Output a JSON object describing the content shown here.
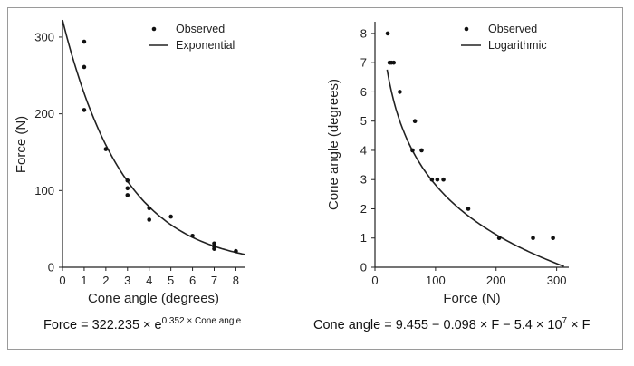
{
  "chart_data": [
    {
      "type": "scatter",
      "xlabel": "Cone angle (degrees)",
      "ylabel": "Force (N)",
      "xlim": [
        0,
        8.4
      ],
      "ylim": [
        0,
        320
      ],
      "xticks": [
        0,
        1,
        2,
        3,
        4,
        5,
        6,
        7,
        8
      ],
      "yticks": [
        0,
        100,
        200,
        300
      ],
      "legend": {
        "position": "top-right",
        "observed": "Observed",
        "fit": "Exponential"
      },
      "series": [
        {
          "name": "Observed",
          "points": [
            [
              1,
              294
            ],
            [
              1,
              261
            ],
            [
              1,
              205
            ],
            [
              2,
              154
            ],
            [
              3,
              113
            ],
            [
              3,
              103
            ],
            [
              3,
              94
            ],
            [
              4,
              77
            ],
            [
              4,
              62
            ],
            [
              5,
              66
            ],
            [
              6,
              41
            ],
            [
              7,
              31
            ],
            [
              7,
              27
            ],
            [
              7,
              24
            ],
            [
              8,
              21
            ]
          ]
        },
        {
          "name": "Exponential",
          "model": "exponential",
          "a": 322.235,
          "b": 0.352,
          "x_range": [
            0,
            8.4
          ]
        }
      ],
      "equation": {
        "lhs": "Force = 322.235 × e",
        "exp": "0.352 × Cone angle"
      }
    },
    {
      "type": "scatter",
      "xlabel": "Force (N)",
      "ylabel": "Cone angle (degrees)",
      "xlim": [
        0,
        320
      ],
      "ylim": [
        0,
        8.4
      ],
      "xticks": [
        0,
        100,
        200,
        300
      ],
      "yticks": [
        0,
        1,
        2,
        3,
        4,
        5,
        6,
        7,
        8
      ],
      "legend": {
        "position": "top-right",
        "observed": "Observed",
        "fit": "Logarithmic"
      },
      "series": [
        {
          "name": "Observed",
          "points": [
            [
              21,
              8
            ],
            [
              24,
              7
            ],
            [
              27,
              7
            ],
            [
              31,
              7
            ],
            [
              41,
              6
            ],
            [
              62,
              4
            ],
            [
              66,
              5
            ],
            [
              77,
              4
            ],
            [
              94,
              3
            ],
            [
              103,
              3
            ],
            [
              113,
              3
            ],
            [
              154,
              2
            ],
            [
              205,
              1
            ],
            [
              261,
              1
            ],
            [
              294,
              1
            ]
          ]
        },
        {
          "name": "Logarithmic",
          "model": "logarithmic",
          "x_range": [
            20,
            312
          ]
        }
      ],
      "equation": {
        "lhs": "Cone angle = 9.455 − 0.098 × F − 5.4 × 10",
        "exp": "7",
        "rhs": " × F"
      }
    }
  ]
}
